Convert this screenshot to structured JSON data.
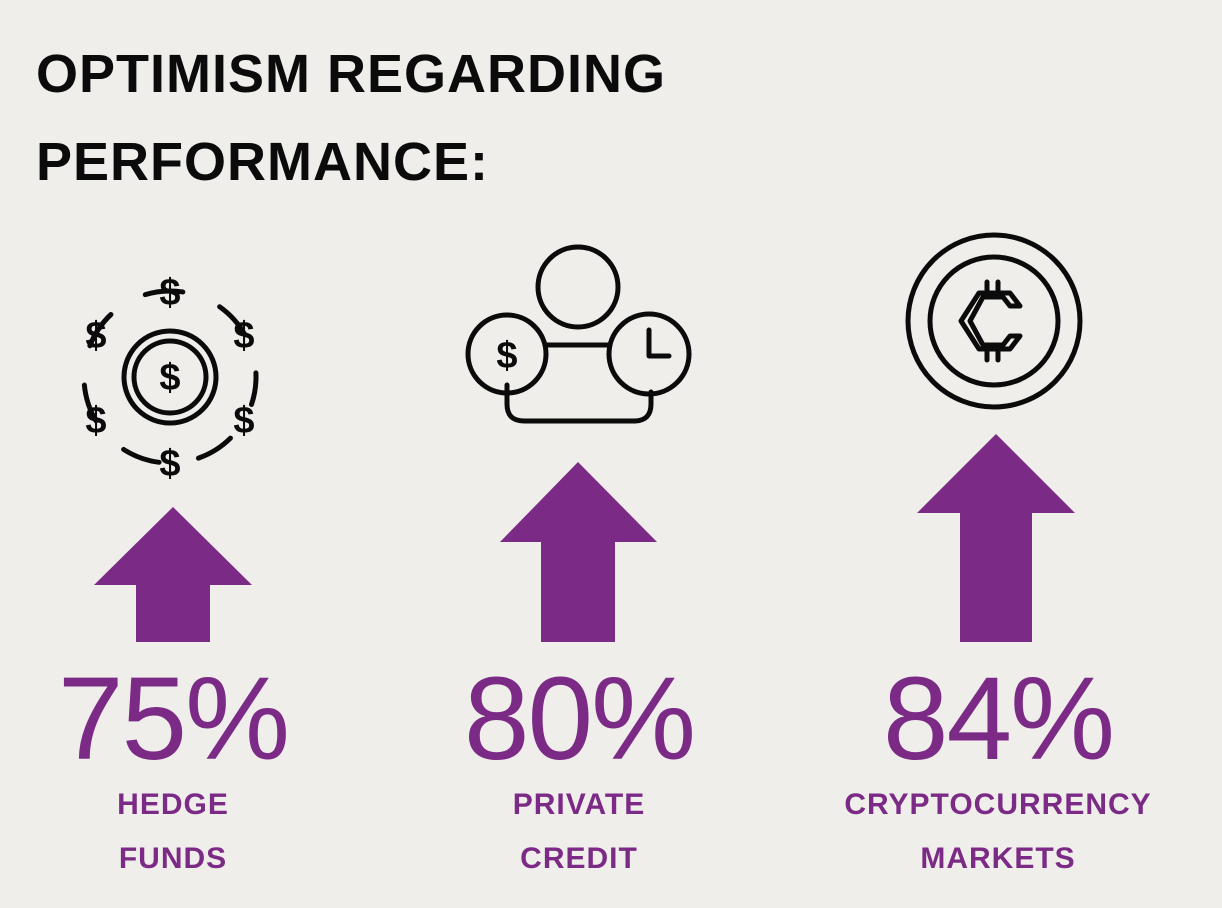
{
  "title": {
    "line1": "OPTIMISM REGARDING",
    "line2": "PERFORMANCE:"
  },
  "accent_color": "#7b2a86",
  "items": [
    {
      "icon": "dollar-coins-cycle-icon",
      "percent": "75%",
      "label_line1": "HEDGE",
      "label_line2": "FUNDS"
    },
    {
      "icon": "private-credit-person-icon",
      "percent": "80%",
      "label_line1": "PRIVATE",
      "label_line2": "CREDIT"
    },
    {
      "icon": "crypto-coin-icon",
      "percent": "84%",
      "label_line1": "CRYPTOCURRENCY",
      "label_line2": "MARKETS"
    }
  ]
}
